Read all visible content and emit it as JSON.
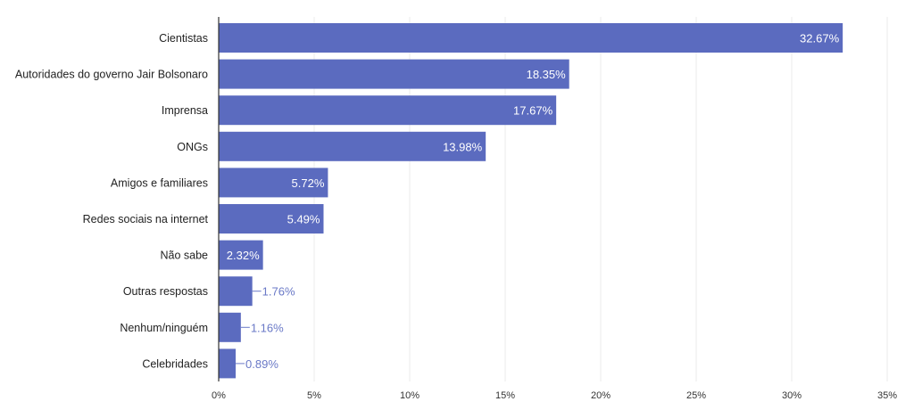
{
  "chart_data": {
    "type": "bar",
    "orientation": "horizontal",
    "categories": [
      "Cientistas",
      "Autoridades do governo Jair Bolsonaro",
      "Imprensa",
      "ONGs",
      "Amigos e familiares",
      "Redes sociais na internet",
      "Não sabe",
      "Outras respostas",
      "Nenhum/ninguém",
      "Celebridades"
    ],
    "values": [
      32.67,
      18.35,
      17.67,
      13.98,
      5.72,
      5.49,
      2.32,
      1.76,
      1.16,
      0.89
    ],
    "value_labels": [
      "32.67%",
      "18.35%",
      "17.67%",
      "13.98%",
      "5.72%",
      "5.49%",
      "2.32%",
      "1.76%",
      "1.16%",
      "0.89%"
    ],
    "xlim": [
      0,
      35
    ],
    "x_ticks": [
      0,
      5,
      10,
      15,
      20,
      25,
      30,
      35
    ],
    "x_tick_labels": [
      "0%",
      "5%",
      "10%",
      "15%",
      "20%",
      "25%",
      "30%",
      "35%"
    ],
    "grid": true,
    "bar_color": "#5b6bbf",
    "outside_label_color": "#6a79c7"
  }
}
